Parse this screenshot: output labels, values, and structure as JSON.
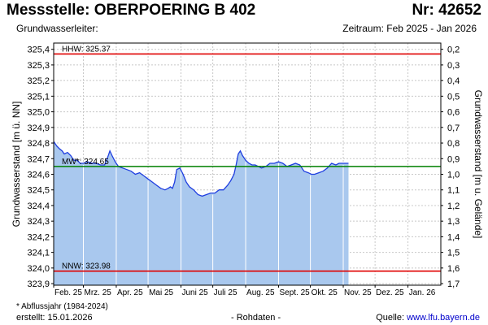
{
  "header": {
    "title": "Messstelle: OBERPOERING B 402",
    "nr": "Nr: 42652",
    "subtitle": "Grundwasserleiter:",
    "period": "Zeitraum: Feb 2025 - Jan 2026"
  },
  "footer": {
    "footnote": "* Abflussjahr (1984-2024)",
    "created": "erstellt:  15.01.2026",
    "rawdata": "- Rohdaten -",
    "source_prefix": "Quelle: ",
    "source_url": "www.lfu.bayern.de"
  },
  "colors": {
    "fill": "#a9c8ee",
    "line": "#1f3ee0",
    "mw_line": "#008000",
    "extreme_line": "#e00000",
    "grid": "#c8c8c8",
    "month_line": "#ffffff"
  },
  "chart_data": {
    "type": "area",
    "title": "",
    "ylabel": "Grundwasserstand [m ü. NN]",
    "y2label": "Grundwasserstand [m u. Gelände]",
    "ylim": [
      323.89,
      325.44
    ],
    "y_ticks": [
      323.9,
      324.0,
      324.1,
      324.2,
      324.3,
      324.4,
      324.5,
      324.6,
      324.7,
      324.8,
      324.9,
      325.0,
      325.1,
      325.2,
      325.3,
      325.4
    ],
    "y_tick_labels": [
      "323,9",
      "324,0",
      "324,1",
      "324,2",
      "324,3",
      "324,4",
      "324,5",
      "324,6",
      "324,7",
      "324,8",
      "324,9",
      "325,0",
      "325,1",
      "325,2",
      "325,3",
      "325,4"
    ],
    "y2_ticks": [
      0.2,
      0.3,
      0.4,
      0.5,
      0.6,
      0.7,
      0.8,
      0.9,
      1.0,
      1.1,
      1.2,
      1.3,
      1.4,
      1.5,
      1.6,
      1.7
    ],
    "y2_tick_labels": [
      "0,2",
      "0,3",
      "0,4",
      "0,5",
      "0,6",
      "0,7",
      "0,8",
      "0,9",
      "1,0",
      "1,1",
      "1,2",
      "1,3",
      "1,4",
      "1,5",
      "1,6",
      "1,7"
    ],
    "ground_level": 325.6,
    "x_start": "2025-02-01",
    "x_end": "2026-02-01",
    "x_ticks": [
      "2025-02-01",
      "2025-03-01",
      "2025-04-01",
      "2025-05-01",
      "2025-06-01",
      "2025-07-01",
      "2025-08-01",
      "2025-09-01",
      "2025-10-01",
      "2025-11-01",
      "2025-12-01",
      "2026-01-01"
    ],
    "x_tick_labels": [
      "Feb. 25",
      "Mrz. 25",
      "Apr. 25",
      "Mai 25",
      "Juni 25",
      "Juli 25",
      "Aug. 25",
      "Sept. 25",
      "Okt. 25",
      "Nov. 25",
      "Dez. 25",
      "Jan. 26"
    ],
    "grid": true,
    "reference_lines": [
      {
        "label": "HHW: 325.37",
        "value": 325.37,
        "kind": "extreme"
      },
      {
        "label": "MW*: 324.65",
        "value": 324.65,
        "kind": "mean"
      },
      {
        "label": "NNW: 323.98",
        "value": 323.98,
        "kind": "extreme"
      }
    ],
    "series": [
      {
        "x": [
          "2025-02-01",
          "2025-02-04",
          "2025-02-07",
          "2025-02-09",
          "2025-02-11",
          "2025-02-14",
          "2025-02-17",
          "2025-02-20",
          "2025-02-23",
          "2025-02-26",
          "2025-03-01",
          "2025-03-05",
          "2025-03-09",
          "2025-03-13",
          "2025-03-17",
          "2025-03-21",
          "2025-03-24",
          "2025-03-26",
          "2025-03-28",
          "2025-03-31",
          "2025-04-03",
          "2025-04-07",
          "2025-04-11",
          "2025-04-15",
          "2025-04-19",
          "2025-04-23",
          "2025-04-27",
          "2025-05-01",
          "2025-05-05",
          "2025-05-09",
          "2025-05-13",
          "2025-05-17",
          "2025-05-20",
          "2025-05-22",
          "2025-05-24",
          "2025-05-26",
          "2025-05-28",
          "2025-05-31",
          "2025-06-03",
          "2025-06-06",
          "2025-06-09",
          "2025-06-13",
          "2025-06-17",
          "2025-06-21",
          "2025-06-25",
          "2025-06-29",
          "2025-07-03",
          "2025-07-07",
          "2025-07-11",
          "2025-07-15",
          "2025-07-18",
          "2025-07-21",
          "2025-07-23",
          "2025-07-25",
          "2025-07-27",
          "2025-07-29",
          "2025-08-01",
          "2025-08-04",
          "2025-08-07",
          "2025-08-10",
          "2025-08-13",
          "2025-08-16",
          "2025-08-20",
          "2025-08-24",
          "2025-08-28",
          "2025-09-01",
          "2025-09-05",
          "2025-09-09",
          "2025-09-13",
          "2025-09-17",
          "2025-09-21",
          "2025-09-25",
          "2025-09-29",
          "2025-10-02",
          "2025-10-05",
          "2025-10-09",
          "2025-10-13",
          "2025-10-17",
          "2025-10-21",
          "2025-10-25",
          "2025-10-28",
          "2025-10-31",
          "2025-11-04",
          "2025-11-06"
        ],
        "y": [
          324.81,
          324.78,
          324.76,
          324.75,
          324.73,
          324.74,
          324.72,
          324.69,
          324.69,
          324.67,
          324.67,
          324.68,
          324.67,
          324.67,
          324.66,
          324.66,
          324.71,
          324.75,
          324.72,
          324.68,
          324.65,
          324.64,
          324.63,
          324.62,
          324.6,
          324.61,
          324.59,
          324.57,
          324.55,
          324.53,
          324.51,
          324.5,
          324.51,
          324.52,
          324.51,
          324.55,
          324.63,
          324.64,
          324.6,
          324.55,
          324.52,
          324.5,
          324.47,
          324.46,
          324.47,
          324.48,
          324.48,
          324.5,
          324.5,
          324.53,
          324.56,
          324.6,
          324.66,
          324.73,
          324.75,
          324.72,
          324.69,
          324.67,
          324.66,
          324.66,
          324.65,
          324.64,
          324.65,
          324.67,
          324.67,
          324.68,
          324.67,
          324.65,
          324.66,
          324.67,
          324.66,
          324.62,
          324.61,
          324.6,
          324.6,
          324.61,
          324.62,
          324.64,
          324.67,
          324.66,
          324.67,
          324.67,
          324.67,
          324.67
        ]
      }
    ]
  }
}
